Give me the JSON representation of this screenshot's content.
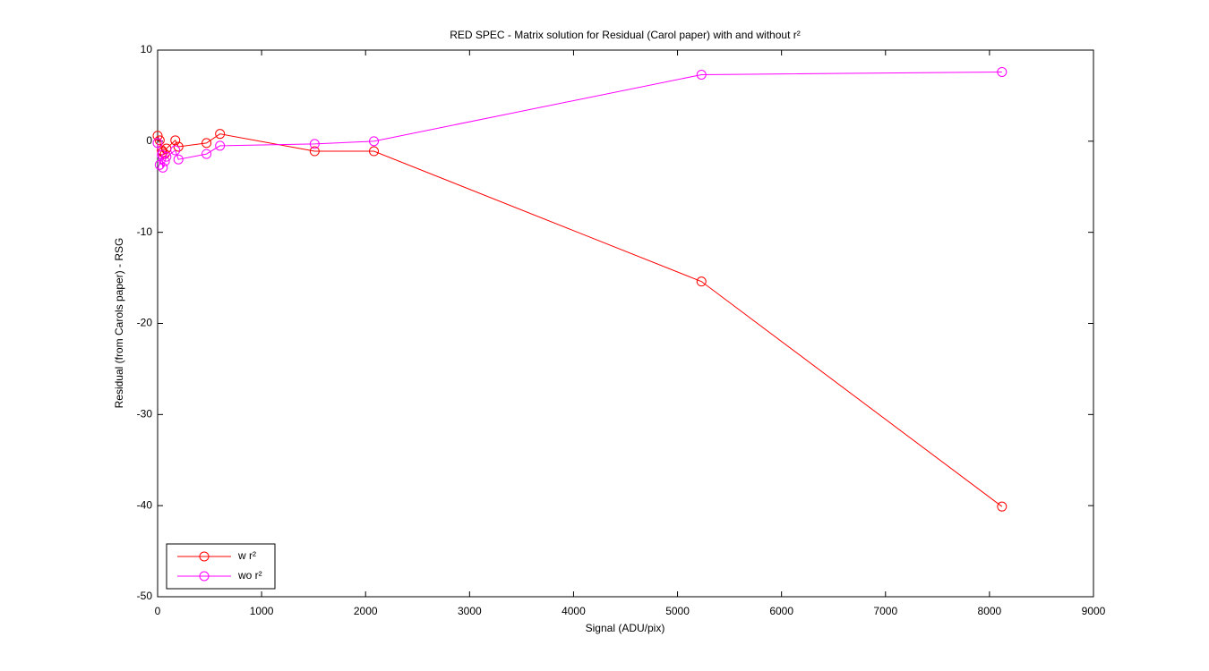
{
  "chart_data": {
    "type": "line",
    "title": "RED SPEC - Matrix solution for Residual (Carol paper) with and without r²",
    "x_label": "Signal (ADU/pix)",
    "y_label": "Residual (from Carols paper) - RSG",
    "x": [
      0,
      20,
      40,
      50,
      70,
      85,
      170,
      200,
      470,
      600,
      1510,
      2080,
      5230,
      8120
    ],
    "series": [
      {
        "name": "w r²",
        "color": "#ff0000",
        "values": [
          0.6,
          0.1,
          -1.0,
          -1.2,
          -1.4,
          -0.8,
          0.1,
          -0.6,
          -0.2,
          0.8,
          -1.1,
          -1.1,
          -15.4,
          -40.1
        ]
      },
      {
        "name": "wo r²",
        "color": "#ff00ff",
        "values": [
          -0.2,
          -2.6,
          -1.5,
          -2.9,
          -2.2,
          -1.7,
          -1.0,
          -2.0,
          -1.4,
          -0.5,
          -0.3,
          0.0,
          7.3,
          7.6
        ]
      }
    ],
    "xlim": [
      0,
      9000
    ],
    "xticks": [
      0,
      1000,
      2000,
      3000,
      4000,
      5000,
      6000,
      7000,
      8000,
      9000
    ],
    "ylim": [
      -50,
      10
    ],
    "yticks": [
      -50,
      -40,
      -30,
      -20,
      -10,
      0,
      10
    ],
    "grid": false,
    "legend": "lower-left",
    "marker": "circle"
  }
}
